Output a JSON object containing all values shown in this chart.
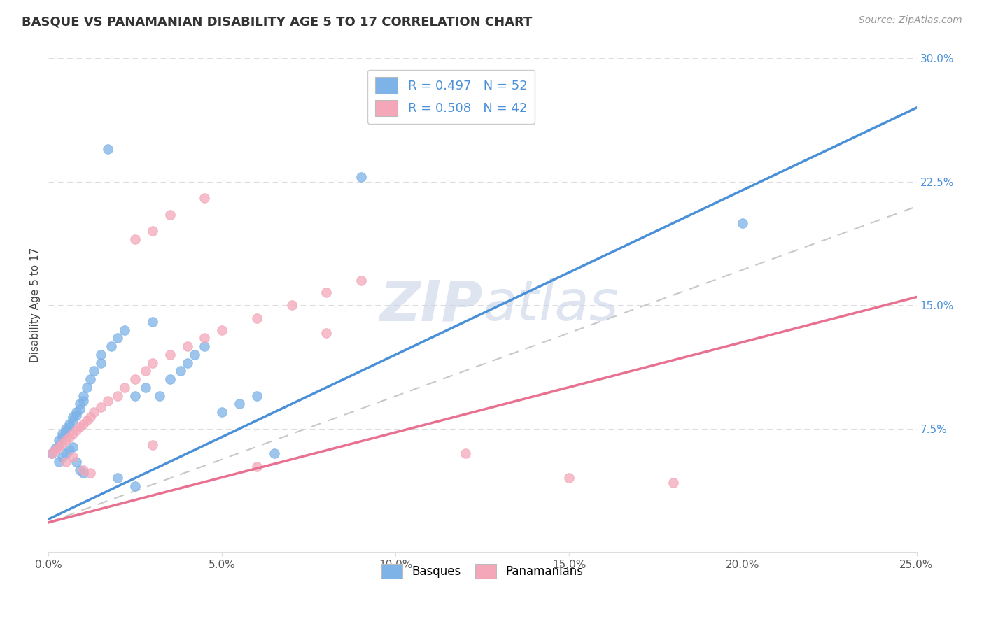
{
  "title": "BASQUE VS PANAMANIAN DISABILITY AGE 5 TO 17 CORRELATION CHART",
  "source_text": "Source: ZipAtlas.com",
  "ylabel": "Disability Age 5 to 17",
  "xlim": [
    0.0,
    0.25
  ],
  "ylim": [
    0.0,
    0.3
  ],
  "xtick_labels": [
    "0.0%",
    "5.0%",
    "10.0%",
    "15.0%",
    "20.0%",
    "25.0%"
  ],
  "xtick_vals": [
    0.0,
    0.05,
    0.1,
    0.15,
    0.2,
    0.25
  ],
  "ytick_labels": [
    "7.5%",
    "15.0%",
    "22.5%",
    "30.0%"
  ],
  "ytick_vals": [
    0.075,
    0.15,
    0.225,
    0.3
  ],
  "basque_color": "#7EB3E8",
  "pink_color": "#F4A7B9",
  "blue_line_color": "#4A90D9",
  "pink_line_color": "#E87090",
  "gray_dashed_color": "#C8C8C8",
  "watermark_color": "#C8D4E8",
  "basque_label": "Basques",
  "panama_label": "Panamanians",
  "legend_text1": "R = 0.497   N = 52",
  "legend_text2": "R = 0.508   N = 42",
  "blue_line_x0": 0.0,
  "blue_line_y0": 0.02,
  "blue_line_x1": 0.25,
  "blue_line_y1": 0.27,
  "pink_line_x0": 0.0,
  "pink_line_y0": 0.018,
  "pink_line_x1": 0.25,
  "pink_line_y1": 0.155,
  "gray_line_x0": 0.0,
  "gray_line_y0": 0.018,
  "gray_line_x1": 0.25,
  "gray_line_y1": 0.21,
  "basque_pts_x": [
    0.001,
    0.002,
    0.003,
    0.003,
    0.004,
    0.004,
    0.005,
    0.005,
    0.006,
    0.006,
    0.007,
    0.007,
    0.008,
    0.008,
    0.009,
    0.009,
    0.01,
    0.01,
    0.011,
    0.012,
    0.013,
    0.015,
    0.015,
    0.018,
    0.02,
    0.022,
    0.025,
    0.028,
    0.03,
    0.032,
    0.035,
    0.038,
    0.04,
    0.042,
    0.045,
    0.05,
    0.055,
    0.06,
    0.065,
    0.017,
    0.003,
    0.004,
    0.005,
    0.006,
    0.007,
    0.008,
    0.009,
    0.01,
    0.02,
    0.025,
    0.2,
    0.09
  ],
  "basque_pts_y": [
    0.06,
    0.063,
    0.065,
    0.068,
    0.07,
    0.072,
    0.073,
    0.075,
    0.076,
    0.078,
    0.08,
    0.082,
    0.083,
    0.085,
    0.087,
    0.09,
    0.092,
    0.095,
    0.1,
    0.105,
    0.11,
    0.115,
    0.12,
    0.125,
    0.13,
    0.135,
    0.095,
    0.1,
    0.14,
    0.095,
    0.105,
    0.11,
    0.115,
    0.12,
    0.125,
    0.085,
    0.09,
    0.095,
    0.06,
    0.245,
    0.055,
    0.058,
    0.06,
    0.062,
    0.064,
    0.055,
    0.05,
    0.048,
    0.045,
    0.04,
    0.2,
    0.228
  ],
  "panama_pts_x": [
    0.001,
    0.002,
    0.003,
    0.004,
    0.005,
    0.006,
    0.007,
    0.008,
    0.009,
    0.01,
    0.011,
    0.012,
    0.013,
    0.015,
    0.017,
    0.02,
    0.022,
    0.025,
    0.028,
    0.03,
    0.035,
    0.04,
    0.045,
    0.05,
    0.06,
    0.07,
    0.08,
    0.09,
    0.005,
    0.007,
    0.01,
    0.012,
    0.03,
    0.06,
    0.12,
    0.025,
    0.03,
    0.035,
    0.08,
    0.15,
    0.18,
    0.045
  ],
  "panama_pts_y": [
    0.06,
    0.062,
    0.064,
    0.066,
    0.068,
    0.07,
    0.072,
    0.074,
    0.076,
    0.078,
    0.08,
    0.082,
    0.085,
    0.088,
    0.092,
    0.095,
    0.1,
    0.105,
    0.11,
    0.115,
    0.12,
    0.125,
    0.13,
    0.135,
    0.142,
    0.15,
    0.158,
    0.165,
    0.055,
    0.058,
    0.05,
    0.048,
    0.065,
    0.052,
    0.06,
    0.19,
    0.195,
    0.205,
    0.133,
    0.045,
    0.042,
    0.215
  ]
}
